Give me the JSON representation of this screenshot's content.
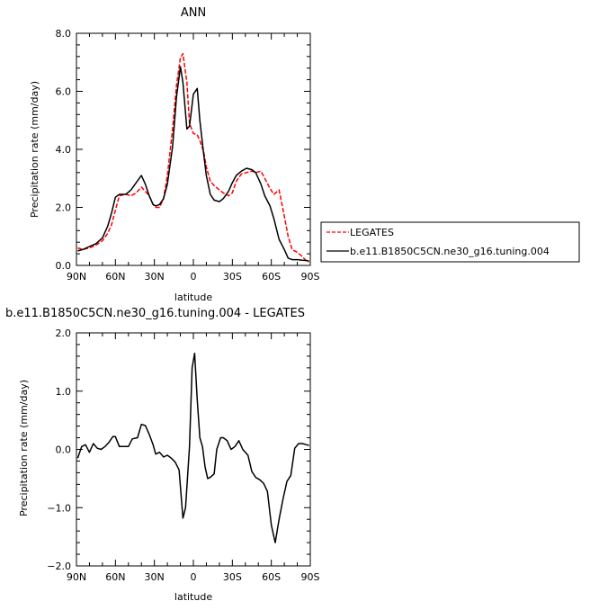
{
  "chart_data": [
    {
      "type": "line",
      "title": "ANN",
      "xlabel": "latitude",
      "ylabel": "Precipitation rate (mm/day)",
      "xlim": [
        90,
        -90
      ],
      "ylim": [
        0,
        8
      ],
      "x_ticks": [
        90,
        60,
        30,
        0,
        -30,
        -60,
        -90
      ],
      "x_tick_labels": [
        "90N",
        "60N",
        "30N",
        "0",
        "30S",
        "60S",
        "90S"
      ],
      "y_ticks": [
        0,
        2,
        4,
        6,
        8
      ],
      "y_tick_labels": [
        "0.0",
        "2.0",
        "4.0",
        "6.0",
        "8.0"
      ],
      "legend": "outside-right",
      "series": [
        {
          "name": "LEGATES",
          "color": "#ff0000",
          "dash": "dashed",
          "x": [
            89,
            85,
            80,
            75,
            70,
            66,
            63,
            60,
            57,
            52,
            48,
            44,
            40,
            37,
            34,
            31,
            29,
            26,
            23,
            20,
            16,
            13,
            10,
            8,
            5,
            3,
            0,
            -3,
            -5,
            -8,
            -10,
            -13,
            -16,
            -20,
            -23,
            -27,
            -30,
            -33,
            -37,
            -41,
            -45,
            -48,
            -52,
            -55,
            -59,
            -62,
            -66,
            -70,
            -73,
            -76,
            -80,
            -84,
            -87,
            -89
          ],
          "y": [
            0.6,
            0.55,
            0.6,
            0.7,
            0.85,
            1.1,
            1.4,
            1.9,
            2.4,
            2.45,
            2.4,
            2.5,
            2.7,
            2.55,
            2.4,
            2.1,
            2.0,
            2.0,
            2.3,
            3.1,
            4.7,
            6.2,
            7.15,
            7.3,
            6.3,
            4.9,
            4.55,
            4.5,
            4.3,
            3.9,
            3.4,
            2.9,
            2.75,
            2.6,
            2.5,
            2.4,
            2.5,
            2.9,
            3.15,
            3.2,
            3.25,
            3.2,
            3.25,
            3.0,
            2.65,
            2.45,
            2.6,
            1.7,
            1.0,
            0.55,
            0.45,
            0.3,
            0.15,
            0.12
          ]
        },
        {
          "name": "b.e11.B1850C5CN.ne30_g16.tuning.004",
          "color": "#000000",
          "dash": "solid",
          "x": [
            89,
            85,
            80,
            75,
            70,
            66,
            63,
            60,
            57,
            52,
            48,
            44,
            40,
            37,
            34,
            31,
            29,
            26,
            23,
            20,
            16,
            13,
            10,
            8,
            5,
            3,
            0,
            -3,
            -5,
            -8,
            -10,
            -13,
            -16,
            -20,
            -23,
            -27,
            -30,
            -33,
            -37,
            -41,
            -45,
            -48,
            -52,
            -55,
            -59,
            -62,
            -66,
            -70,
            -73,
            -76,
            -80,
            -84,
            -87,
            -89
          ],
          "y": [
            0.5,
            0.55,
            0.65,
            0.75,
            0.95,
            1.35,
            1.8,
            2.35,
            2.45,
            2.45,
            2.6,
            2.85,
            3.1,
            2.8,
            2.4,
            2.1,
            2.05,
            2.1,
            2.3,
            2.8,
            4.1,
            5.8,
            6.85,
            6.3,
            4.7,
            4.8,
            5.9,
            6.1,
            5.0,
            3.8,
            3.1,
            2.45,
            2.25,
            2.2,
            2.3,
            2.55,
            2.85,
            3.1,
            3.25,
            3.35,
            3.3,
            3.2,
            2.8,
            2.4,
            2.05,
            1.6,
            0.9,
            0.55,
            0.25,
            0.2,
            0.2,
            0.18,
            0.17,
            0.15
          ]
        }
      ]
    },
    {
      "type": "line",
      "title": "b.e11.B1850C5CN.ne30_g16.tuning.004 - LEGATES",
      "xlabel": "latitude",
      "ylabel": "Precipitation rate (mm/day)",
      "xlim": [
        90,
        -90
      ],
      "ylim": [
        -2,
        2
      ],
      "x_ticks": [
        90,
        60,
        30,
        0,
        -30,
        -60,
        -90
      ],
      "x_tick_labels": [
        "90N",
        "60N",
        "30N",
        "0",
        "30S",
        "60S",
        "90S"
      ],
      "y_ticks": [
        -2,
        -1,
        0,
        1,
        2
      ],
      "y_tick_labels": [
        "−2.0",
        "−1.0",
        "0.0",
        "1.0",
        "2.0"
      ],
      "series": [
        {
          "color": "#000000",
          "dash": "solid",
          "x": [
            89,
            86,
            83,
            80,
            77,
            74,
            71,
            68,
            65,
            62,
            60,
            57,
            54,
            50,
            47,
            43,
            40,
            37,
            34,
            31,
            29,
            26,
            23,
            20,
            17,
            14,
            11,
            8,
            6,
            3,
            1,
            -1,
            -3,
            -5,
            -7,
            -9,
            -11,
            -13,
            -16,
            -18,
            -21,
            -23,
            -26,
            -29,
            -32,
            -35,
            -38,
            -42,
            -45,
            -48,
            -51,
            -54,
            -57,
            -60,
            -63,
            -66,
            -69,
            -72,
            -75,
            -78,
            -81,
            -84,
            -87,
            -89
          ],
          "y": [
            -0.15,
            0.05,
            0.08,
            -0.05,
            0.1,
            0.02,
            0.0,
            0.05,
            0.12,
            0.22,
            0.22,
            0.05,
            0.05,
            0.05,
            0.18,
            0.2,
            0.43,
            0.41,
            0.26,
            0.08,
            -0.08,
            -0.05,
            -0.13,
            -0.1,
            -0.15,
            -0.22,
            -0.35,
            -1.18,
            -1.0,
            0.05,
            1.4,
            1.65,
            0.85,
            0.2,
            0.05,
            -0.3,
            -0.5,
            -0.48,
            -0.42,
            0.0,
            0.2,
            0.2,
            0.15,
            0.0,
            0.05,
            0.15,
            0.0,
            -0.1,
            -0.38,
            -0.48,
            -0.52,
            -0.58,
            -0.72,
            -1.3,
            -1.6,
            -1.2,
            -0.85,
            -0.55,
            -0.45,
            0.02,
            0.1,
            0.1,
            0.08,
            0.07
          ]
        }
      ]
    }
  ]
}
